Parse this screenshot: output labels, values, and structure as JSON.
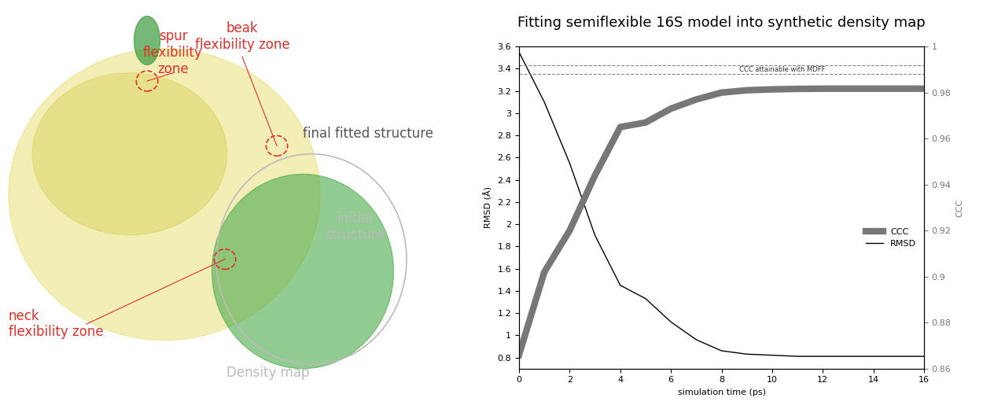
{
  "chart_data": {
    "type": "line",
    "title": "Fitting semiflexible 16S model into synthetic density map",
    "x_label": "simulation time (ps)",
    "y_label": "RMSD (Å)",
    "y2_label": "CCC",
    "x": [
      0,
      1,
      2,
      3,
      4,
      5,
      6,
      7,
      8,
      9,
      10,
      11,
      12,
      13,
      14,
      15,
      16
    ],
    "series": [
      {
        "name": "CCC",
        "color": "#777777",
        "axis": "y2",
        "line_style": "solid",
        "values": [
          0.866,
          0.902,
          0.92,
          0.944,
          0.965,
          0.967,
          0.973,
          0.977,
          0.98,
          0.981,
          0.9814,
          0.9816,
          0.9817,
          0.9817,
          0.9817,
          0.9817,
          0.9817
        ]
      },
      {
        "name": "RMSD",
        "color": "#000000",
        "line_style": "solid",
        "values": [
          3.55,
          3.1,
          2.55,
          1.9,
          1.45,
          1.33,
          1.12,
          0.96,
          0.86,
          0.83,
          0.82,
          0.81,
          0.81,
          0.81,
          0.81,
          0.81,
          0.81
        ]
      }
    ],
    "reference_lines": {
      "label": "CCC attainable with MDFF",
      "values": [
        0.988,
        0.992
      ],
      "axis": "y2",
      "color": "#888888",
      "line_style": "dashed"
    },
    "xlim": [
      0,
      16
    ],
    "xticks": [
      0,
      2,
      4,
      6,
      8,
      10,
      12,
      14,
      16
    ],
    "ylim": [
      0.7,
      3.6
    ],
    "yticks": [
      0.8,
      1,
      1.2,
      1.4,
      1.6,
      1.8,
      2,
      2.2,
      2.4,
      2.6,
      2.8,
      3,
      3.2,
      3.4,
      3.6
    ],
    "y2lim": [
      0.86,
      1.0
    ],
    "y2ticks": [
      0.86,
      0.88,
      0.9,
      0.92,
      0.94,
      0.96,
      0.98,
      1
    ],
    "legend": "lower right",
    "grid": false
  },
  "illustration": {
    "labels": [
      {
        "text": "spur\nflexibility\nzone",
        "color": "#e0302a"
      },
      {
        "text": "beak\nflexibility zone",
        "color": "#e0302a"
      },
      {
        "text": "final fitted structure",
        "color": "#555555"
      },
      {
        "text": "initial\nstructure",
        "color": "#bbbbbb"
      },
      {
        "text": "neck\nflexibility zone",
        "color": "#e0302a"
      },
      {
        "text": "Density map",
        "color": "#bbbbbb"
      }
    ]
  }
}
